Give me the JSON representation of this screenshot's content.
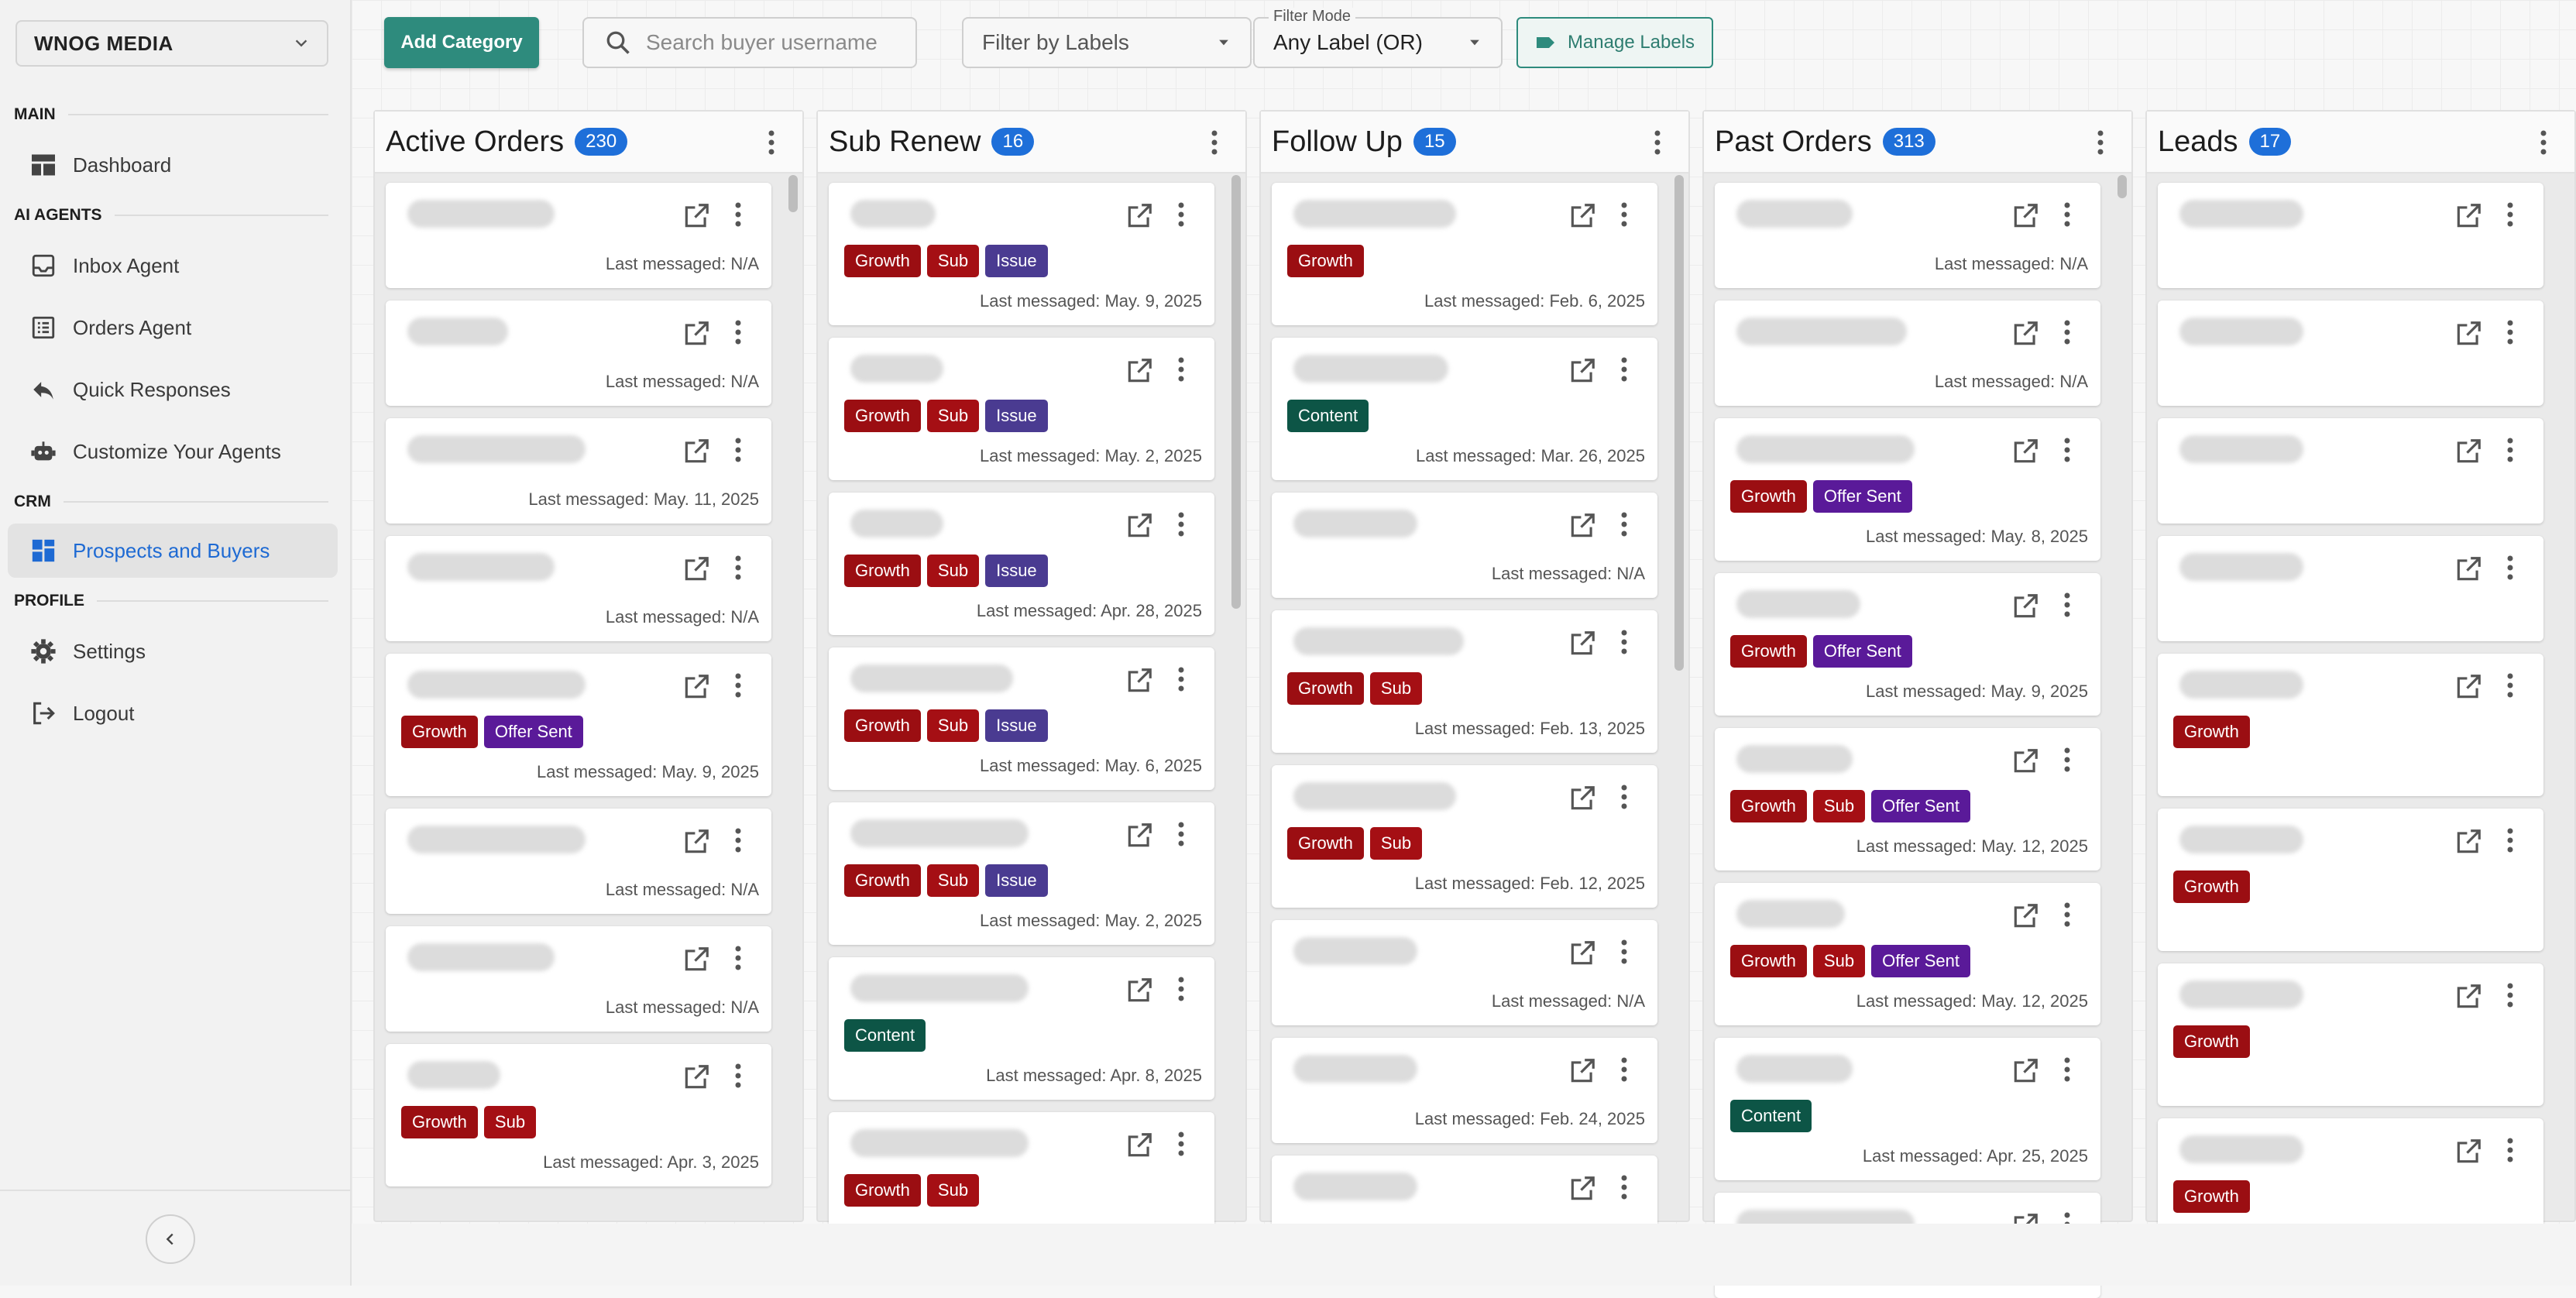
{
  "sidebar": {
    "workspace": "WNOG MEDIA",
    "sections": {
      "main": "MAIN",
      "ai_agents": "AI AGENTS",
      "crm": "CRM",
      "profile": "PROFILE"
    },
    "items": {
      "dashboard": "Dashboard",
      "inbox_agent": "Inbox Agent",
      "orders_agent": "Orders Agent",
      "quick_responses": "Quick Responses",
      "customize_agents": "Customize Your Agents",
      "prospects_buyers": "Prospects and Buyers",
      "settings": "Settings",
      "logout": "Logout"
    },
    "active_color": "#1e6ad3"
  },
  "toolbar": {
    "add_category": "Add Category",
    "search_placeholder": "Search buyer username",
    "filter_labels_placeholder": "Filter by Labels",
    "filter_mode_legend": "Filter Mode",
    "filter_mode_value": "Any Label (OR)",
    "manage_labels": "Manage Labels"
  },
  "colors": {
    "accent": "#2e8b7d",
    "count_badge": "#1e6fd9",
    "growth": "#9b0e12",
    "sub": "#a50f14",
    "issue": "#4a3b91",
    "offer_sent": "#5a1a99",
    "content": "#0d5546"
  },
  "columns": [
    {
      "title": "Active Orders",
      "count": "230",
      "cards": [
        {
          "labels": [],
          "last": "Last messaged: N/A"
        },
        {
          "labels": [],
          "last": "Last messaged: N/A"
        },
        {
          "labels": [],
          "last": "Last messaged: May. 11, 2025"
        },
        {
          "labels": [],
          "last": "Last messaged: N/A"
        },
        {
          "labels": [
            "Growth",
            "Offer Sent"
          ],
          "last": "Last messaged: May. 9, 2025"
        },
        {
          "labels": [],
          "last": "Last messaged: N/A"
        },
        {
          "labels": [],
          "last": "Last messaged: N/A"
        },
        {
          "labels": [
            "Growth",
            "Sub"
          ],
          "last": "Last messaged: Apr. 3, 2025"
        }
      ]
    },
    {
      "title": "Sub Renew",
      "count": "16",
      "cards": [
        {
          "labels": [
            "Growth",
            "Sub",
            "Issue"
          ],
          "last": "Last messaged: May. 9, 2025"
        },
        {
          "labels": [
            "Growth",
            "Sub",
            "Issue"
          ],
          "last": "Last messaged: May. 2, 2025"
        },
        {
          "labels": [
            "Growth",
            "Sub",
            "Issue"
          ],
          "last": "Last messaged: Apr. 28, 2025"
        },
        {
          "labels": [
            "Growth",
            "Sub",
            "Issue"
          ],
          "last": "Last messaged: May. 6, 2025"
        },
        {
          "labels": [
            "Growth",
            "Sub",
            "Issue"
          ],
          "last": "Last messaged: May. 2, 2025"
        },
        {
          "labels": [
            "Content"
          ],
          "last": "Last messaged: Apr. 8, 2025"
        },
        {
          "labels": [
            "Growth",
            "Sub"
          ],
          "last": ""
        }
      ]
    },
    {
      "title": "Follow Up",
      "count": "15",
      "cards": [
        {
          "labels": [
            "Growth"
          ],
          "last": "Last messaged: Feb. 6, 2025"
        },
        {
          "labels": [
            "Content"
          ],
          "last": "Last messaged: Mar. 26, 2025"
        },
        {
          "labels": [],
          "last": "Last messaged: N/A"
        },
        {
          "labels": [
            "Growth",
            "Sub"
          ],
          "last": "Last messaged: Feb. 13, 2025"
        },
        {
          "labels": [
            "Growth",
            "Sub"
          ],
          "last": "Last messaged: Feb. 12, 2025"
        },
        {
          "labels": [],
          "last": "Last messaged: N/A"
        },
        {
          "labels": [],
          "last": "Last messaged: Feb. 24, 2025"
        },
        {
          "labels": [],
          "last": ""
        }
      ]
    },
    {
      "title": "Past Orders",
      "count": "313",
      "cards": [
        {
          "labels": [],
          "last": "Last messaged: N/A"
        },
        {
          "labels": [],
          "last": "Last messaged: N/A"
        },
        {
          "labels": [
            "Growth",
            "Offer Sent"
          ],
          "last": "Last messaged: May. 8, 2025"
        },
        {
          "labels": [
            "Growth",
            "Offer Sent"
          ],
          "last": "Last messaged: May. 9, 2025"
        },
        {
          "labels": [
            "Growth",
            "Sub",
            "Offer Sent"
          ],
          "last": "Last messaged: May. 12, 2025"
        },
        {
          "labels": [
            "Growth",
            "Sub",
            "Offer Sent"
          ],
          "last": "Last messaged: May. 12, 2025"
        },
        {
          "labels": [
            "Content"
          ],
          "last": "Last messaged: Apr. 25, 2025"
        },
        {
          "labels": [],
          "last": ""
        }
      ]
    },
    {
      "title": "Leads",
      "count": "17",
      "cards": [
        {
          "labels": [],
          "last": ""
        },
        {
          "labels": [],
          "last": ""
        },
        {
          "labels": [],
          "last": ""
        },
        {
          "labels": [],
          "last": ""
        },
        {
          "labels": [
            "Growth"
          ],
          "last": ""
        },
        {
          "labels": [
            "Growth"
          ],
          "last": ""
        },
        {
          "labels": [
            "Growth"
          ],
          "last": ""
        },
        {
          "labels": [
            "Growth"
          ],
          "last": ""
        }
      ]
    }
  ]
}
